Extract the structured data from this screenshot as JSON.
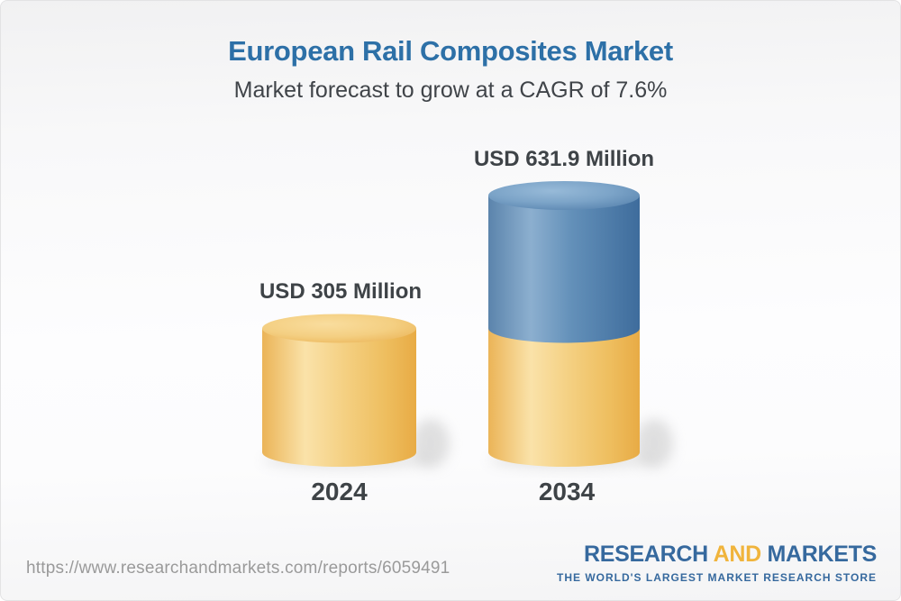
{
  "chart_data": {
    "type": "bar",
    "variant": "3d-cylinder-stacked",
    "title": "European Rail Composites Market",
    "subtitle": "Market forecast to grow at a CAGR of 7.6%",
    "unit": "USD Million",
    "cagr_percent": 7.6,
    "categories": [
      "2024",
      "2034"
    ],
    "bars": [
      {
        "category": "2024",
        "total": 305,
        "value_label": "USD 305 Million",
        "segments": [
          {
            "name": "market-2024",
            "value": 305,
            "tone": "gold"
          }
        ]
      },
      {
        "category": "2034",
        "total": 631.9,
        "value_label": "USD 631.9 Million",
        "segments": [
          {
            "name": "base-2024-market",
            "value": 305,
            "tone": "gold"
          },
          {
            "name": "forecast-growth",
            "value": 326.9,
            "tone": "blue"
          }
        ]
      }
    ],
    "colors": {
      "gold": "#F2C878",
      "blue": "#6490B9",
      "title_blue": "#2D70A7",
      "label_dark": "#3E4347"
    },
    "axis_lines": "none",
    "legend": "none"
  },
  "footer": {
    "url": "https://www.researchandmarkets.com/reports/6059491",
    "logo": {
      "research": "RESEARCH",
      "and": "AND",
      "markets": "MARKETS",
      "tagline": "THE WORLD'S LARGEST MARKET RESEARCH STORE",
      "blue": "#36699E",
      "gold": "#F0B43C"
    }
  }
}
